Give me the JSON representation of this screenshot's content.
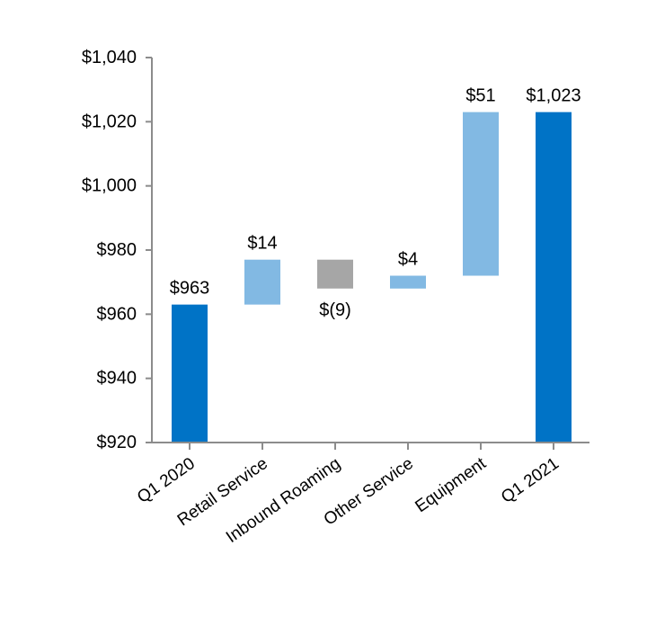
{
  "chart_data": {
    "type": "bar",
    "subtype": "waterfall",
    "title": "",
    "xlabel": "",
    "ylabel": "",
    "categories": [
      "Q1 2020",
      "Retail Service",
      "Inbound Roaming",
      "Other Service",
      "Equipment",
      "Q1 2021"
    ],
    "bars": [
      {
        "category": "Q1 2020",
        "kind": "total",
        "start": 920,
        "end": 963,
        "label": "$963",
        "color": "#0073c6"
      },
      {
        "category": "Retail Service",
        "kind": "increase",
        "start": 963,
        "end": 977,
        "label": "$14",
        "color": "#82b9e3"
      },
      {
        "category": "Inbound Roaming",
        "kind": "decrease",
        "start": 977,
        "end": 968,
        "label": "$(9)",
        "color": "#a6a6a6"
      },
      {
        "category": "Other Service",
        "kind": "increase",
        "start": 968,
        "end": 972,
        "label": "$4",
        "color": "#82b9e3"
      },
      {
        "category": "Equipment",
        "kind": "increase",
        "start": 972,
        "end": 1023,
        "label": "$51",
        "color": "#82b9e3"
      },
      {
        "category": "Q1 2021",
        "kind": "total",
        "start": 920,
        "end": 1023,
        "label": "$1,023",
        "color": "#0073c6"
      }
    ],
    "ylim": [
      920,
      1040
    ],
    "yticks": [
      920,
      940,
      960,
      980,
      1000,
      1020,
      1040
    ],
    "ytick_labels": [
      "$920",
      "$940",
      "$960",
      "$980",
      "$1,000",
      "$1,020",
      "$1,040"
    ],
    "grid": false,
    "legend": "none"
  }
}
